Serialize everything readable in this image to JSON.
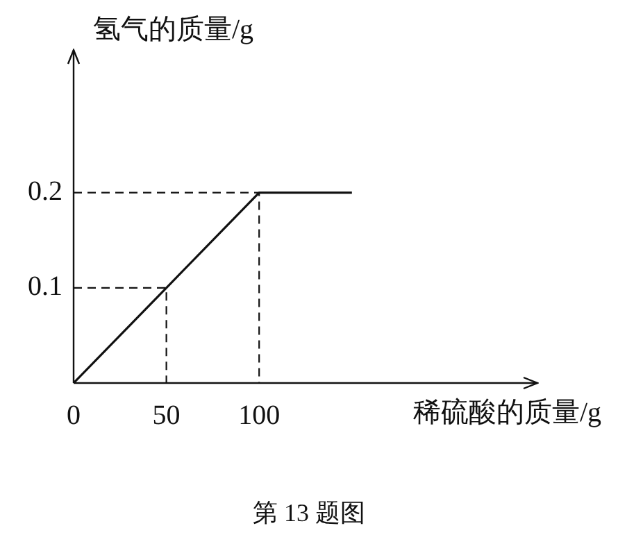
{
  "chart_data": {
    "type": "line",
    "xlabel": "稀硫酸的质量/g",
    "ylabel": "氢气的质量/g",
    "annotations": [
      "第 13 题图"
    ],
    "series": [
      {
        "color": "#111111",
        "x": [
          0,
          50,
          100,
          150
        ],
        "values": [
          0,
          0.1,
          0.2,
          0.2
        ]
      },
      {
        "type": "line",
        "color": "#111111",
        "line_style": "dashed",
        "x": [
          0,
          50,
          50
        ],
        "values": [
          0.1,
          0.1,
          0
        ]
      },
      {
        "type": "line",
        "color": "#111111",
        "line_style": "dashed",
        "x": [
          0,
          100,
          100
        ],
        "values": [
          0.2,
          0.2,
          0
        ]
      }
    ],
    "xlim": [
      0,
      250
    ],
    "ylim": [
      0,
      0.35
    ],
    "xticks": [
      0,
      50,
      100
    ],
    "yticks": [
      0.1,
      0.2
    ],
    "grid": false,
    "legend": false,
    "marker": "none",
    "line_style": "solid"
  }
}
